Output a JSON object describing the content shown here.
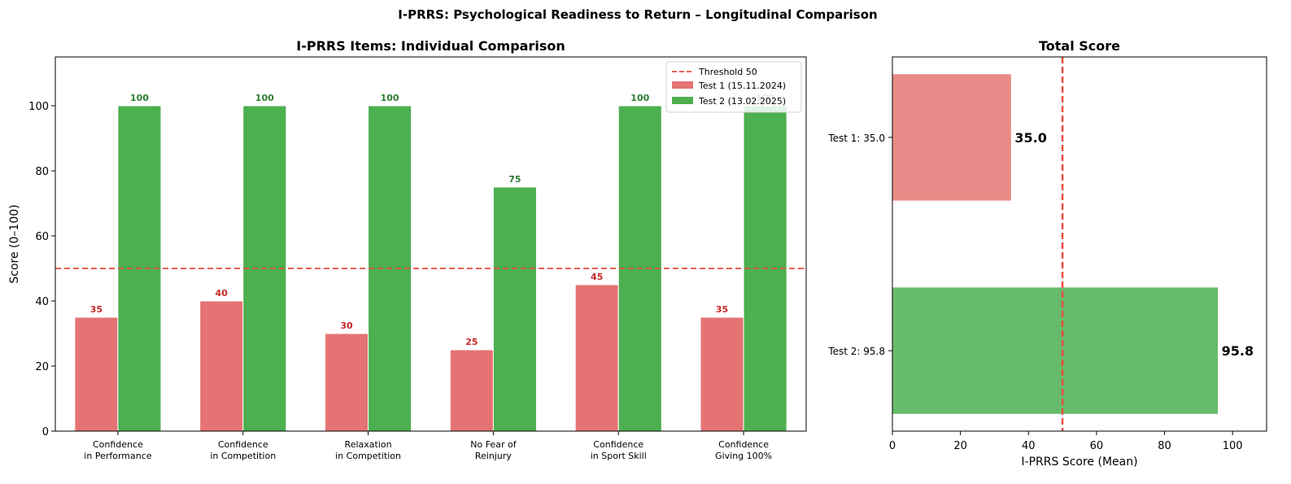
{
  "suptitle": "I-PRRS: Psychological Readiness to Return – Longitudinal Comparison",
  "colors": {
    "test1": "#e57373",
    "test2": "#4caf50",
    "test1_total": "#e88a87",
    "test2_total": "#66bb6a",
    "threshold": "#e74c3c",
    "test1_label": "#c62828",
    "test2_label": "#2e7d32"
  },
  "chart_data": [
    {
      "type": "bar",
      "title": "I-PRRS Items: Individual Comparison",
      "xlabel": "",
      "ylabel": "Score (0–100)",
      "ylim": [
        0,
        115
      ],
      "yticks": [
        0,
        20,
        40,
        60,
        80,
        100
      ],
      "grid": false,
      "legend_position": "top-right",
      "categories": [
        [
          "Confidence",
          "in Performance"
        ],
        [
          "Confidence",
          "in Competition"
        ],
        [
          "Relaxation",
          "in Competition"
        ],
        [
          "No Fear of",
          "Reinjury"
        ],
        [
          "Confidence",
          "in Sport Skill"
        ],
        [
          "Confidence",
          "Giving 100%"
        ]
      ],
      "series": [
        {
          "name": "Test 1 (15.11.2024)",
          "values": [
            35,
            40,
            30,
            25,
            45,
            35
          ]
        },
        {
          "name": "Test 2 (13.02.2025)",
          "values": [
            100,
            100,
            100,
            75,
            100,
            100
          ]
        }
      ],
      "threshold": {
        "value": 50,
        "label": "Threshold 50"
      }
    },
    {
      "type": "bar",
      "orientation": "horizontal",
      "title": "Total Score",
      "xlabel": "I-PRRS Score (Mean)",
      "ylabel": "",
      "xlim": [
        0,
        110
      ],
      "xticks": [
        0,
        20,
        40,
        60,
        80,
        100
      ],
      "categories": [
        "Test 1: 35.0",
        "Test 2: 95.8"
      ],
      "values": [
        35.0,
        95.8
      ],
      "value_labels": [
        "35.0",
        "95.8"
      ],
      "threshold": {
        "value": 50
      }
    }
  ]
}
